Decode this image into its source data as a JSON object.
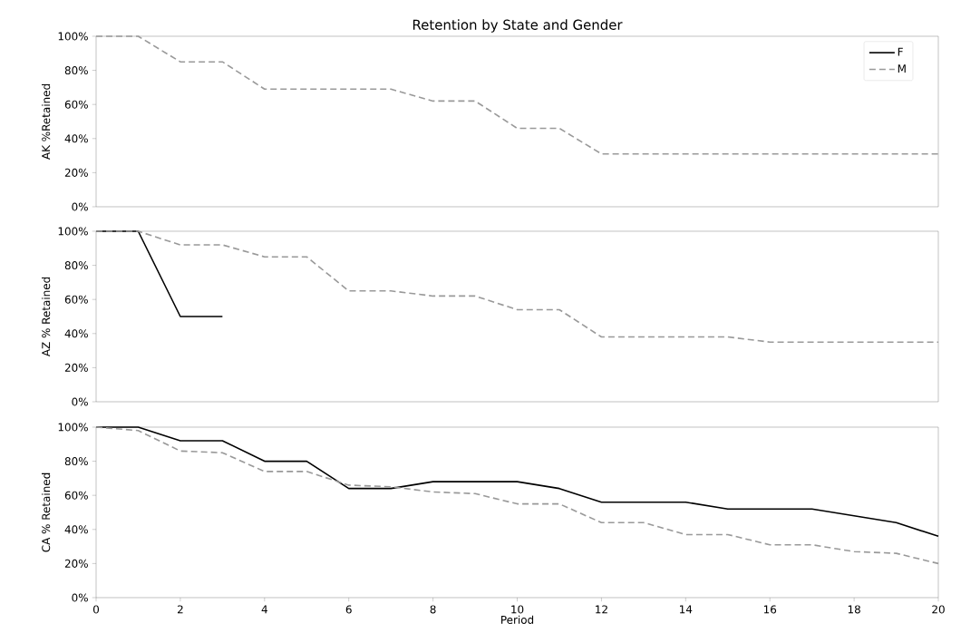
{
  "chart_data": [
    {
      "type": "line",
      "title": "Retention by State and Gender",
      "ylabel": "AK %Retained",
      "xlim": [
        0,
        20
      ],
      "ylim": [
        0,
        100
      ],
      "yticks": [
        {
          "value": 0,
          "label": "0%"
        },
        {
          "value": 20,
          "label": "20%"
        },
        {
          "value": 40,
          "label": "40%"
        },
        {
          "value": 60,
          "label": "60%"
        },
        {
          "value": 80,
          "label": "80%"
        },
        {
          "value": 100,
          "label": "100%"
        }
      ],
      "xticks": [
        0,
        2,
        4,
        6,
        8,
        10,
        12,
        14,
        16,
        18,
        20
      ],
      "tick_labels": "y",
      "legend": "top right",
      "series": [
        {
          "name": "F",
          "color": "#000000",
          "line_style": "solid"
        },
        {
          "name": "M",
          "color": "#999999",
          "line_style": "dashed",
          "x": [
            0,
            1,
            2,
            3,
            4,
            5,
            6,
            7,
            8,
            9,
            10,
            11,
            12,
            13,
            14,
            15,
            16,
            17,
            18,
            19,
            20
          ],
          "values": [
            100,
            100,
            85,
            85,
            69,
            69,
            69,
            69,
            62,
            62,
            46,
            46,
            31,
            31,
            31,
            31,
            31,
            31,
            31,
            31,
            31
          ]
        }
      ]
    },
    {
      "type": "line",
      "ylabel": "AZ % Retained",
      "xlim": [
        0,
        20
      ],
      "ylim": [
        0,
        100
      ],
      "yticks": [
        {
          "value": 0,
          "label": "0%"
        },
        {
          "value": 20,
          "label": "20%"
        },
        {
          "value": 40,
          "label": "40%"
        },
        {
          "value": 60,
          "label": "60%"
        },
        {
          "value": 80,
          "label": "80%"
        },
        {
          "value": 100,
          "label": "100%"
        }
      ],
      "xticks": [
        0,
        2,
        4,
        6,
        8,
        10,
        12,
        14,
        16,
        18,
        20
      ],
      "tick_labels": "y",
      "series": [
        {
          "color": "#000000",
          "line_style": "solid",
          "x": [
            0,
            1,
            2,
            3
          ],
          "values": [
            100,
            100,
            50,
            50
          ]
        },
        {
          "color": "#999999",
          "line_style": "dashed",
          "x": [
            0,
            1,
            2,
            3,
            4,
            5,
            6,
            7,
            8,
            9,
            10,
            11,
            12,
            13,
            14,
            15,
            16,
            17,
            18,
            19,
            20
          ],
          "values": [
            100,
            100,
            92,
            92,
            85,
            85,
            65,
            65,
            62,
            62,
            54,
            54,
            38,
            38,
            38,
            38,
            35,
            35,
            35,
            35,
            35
          ]
        }
      ]
    },
    {
      "type": "line",
      "ylabel": "CA % Retained",
      "xlabel": "Period",
      "xlim": [
        0,
        20
      ],
      "ylim": [
        0,
        100
      ],
      "yticks": [
        {
          "value": 0,
          "label": "0%"
        },
        {
          "value": 20,
          "label": "20%"
        },
        {
          "value": 40,
          "label": "40%"
        },
        {
          "value": 60,
          "label": "60%"
        },
        {
          "value": 80,
          "label": "80%"
        },
        {
          "value": 100,
          "label": "100%"
        }
      ],
      "xticks": [
        0,
        2,
        4,
        6,
        8,
        10,
        12,
        14,
        16,
        18,
        20
      ],
      "series": [
        {
          "color": "#000000",
          "line_style": "solid",
          "x": [
            0,
            1,
            2,
            3,
            4,
            5,
            6,
            7,
            8,
            9,
            10,
            11,
            12,
            13,
            14,
            15,
            16,
            17,
            18,
            19,
            20
          ],
          "values": [
            100,
            100,
            92,
            92,
            80,
            80,
            64,
            64,
            68,
            68,
            68,
            64,
            56,
            56,
            56,
            52,
            52,
            52,
            48,
            44,
            36
          ]
        },
        {
          "color": "#999999",
          "line_style": "dashed",
          "x": [
            0,
            1,
            2,
            3,
            4,
            5,
            6,
            7,
            8,
            9,
            10,
            11,
            12,
            13,
            14,
            15,
            16,
            17,
            18,
            19,
            20
          ],
          "values": [
            100,
            98,
            86,
            85,
            74,
            74,
            66,
            65,
            62,
            61,
            55,
            55,
            44,
            44,
            37,
            37,
            31,
            31,
            27,
            26,
            20
          ]
        }
      ]
    }
  ]
}
